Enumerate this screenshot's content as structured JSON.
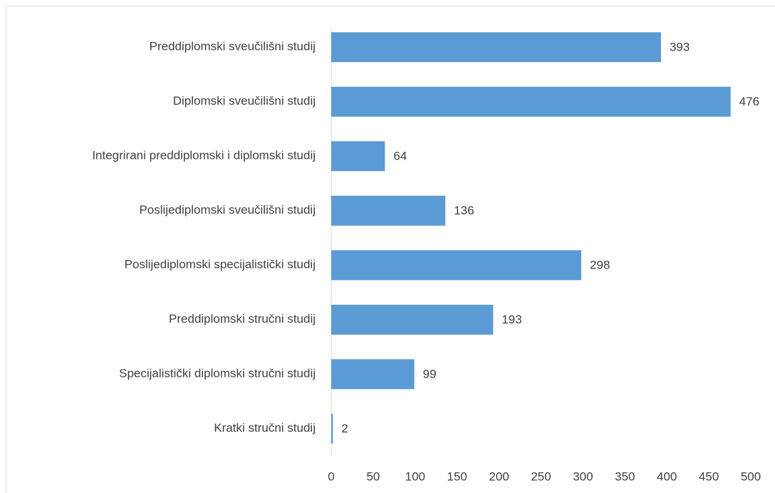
{
  "chart_data": {
    "type": "bar",
    "orientation": "horizontal",
    "categories": [
      "Preddiplomski sveučilišni studij",
      "Diplomski sveučilišni studij",
      "Integrirani preddiplomski i diplomski studij",
      "Poslijediplomski sveučilišni studij",
      "Poslijediplomski specijalistički studij",
      "Preddiplomski stručni studij",
      "Specijalistički diplomski stručni studij",
      "Kratki stručni studij"
    ],
    "values": [
      393,
      476,
      64,
      136,
      298,
      193,
      99,
      2
    ],
    "color": "#5b9bd5",
    "xlim": [
      0,
      500
    ],
    "xticks": [
      0,
      50,
      100,
      150,
      200,
      250,
      300,
      350,
      400,
      450,
      500
    ],
    "grid": false
  }
}
